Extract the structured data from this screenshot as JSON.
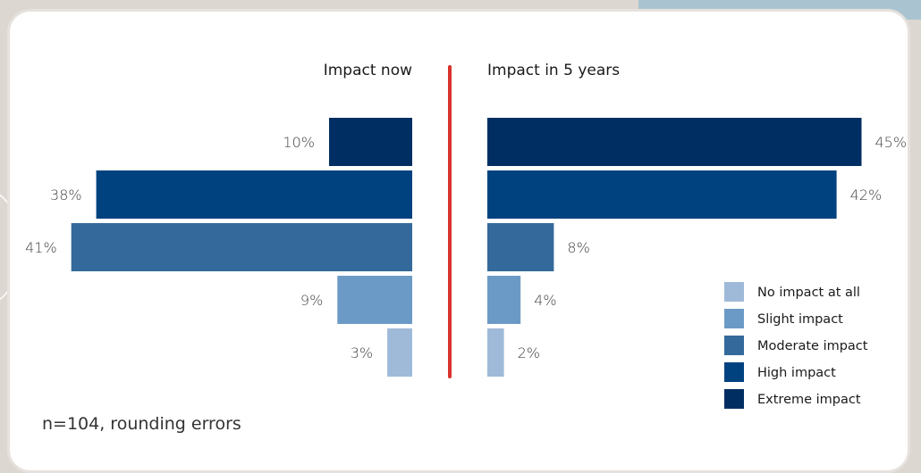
{
  "chart_data": {
    "type": "bar",
    "orientation": "horizontal",
    "categories": [
      "Extreme impact",
      "High impact",
      "Moderate impact",
      "Slight impact",
      "No impact at all"
    ],
    "series": [
      {
        "name": "Impact now",
        "values": [
          10,
          38,
          41,
          9,
          3
        ],
        "labels": [
          "10%",
          "38%",
          "41%",
          "9%",
          "3%"
        ]
      },
      {
        "name": "Impact in 5 years",
        "values": [
          45,
          42,
          8,
          4,
          2
        ],
        "labels": [
          "45%",
          "42%",
          "8%",
          "4%",
          "2%"
        ]
      }
    ],
    "colors": [
      "#002e63",
      "#00427f",
      "#346a9b",
      "#6c9ac6",
      "#9ebad8"
    ],
    "divider_color": "#d9322b",
    "legend": {
      "position": "bottom-right",
      "entries": [
        {
          "label": "No impact at all",
          "color": "#9ebad8"
        },
        {
          "label": "Slight impact",
          "color": "#6c9ac6"
        },
        {
          "label": "Moderate impact",
          "color": "#346a9b"
        },
        {
          "label": "High impact",
          "color": "#00427f"
        },
        {
          "label": "Extreme impact",
          "color": "#002e63"
        }
      ]
    },
    "note": "n=104, rounding errors",
    "unit": "%"
  }
}
